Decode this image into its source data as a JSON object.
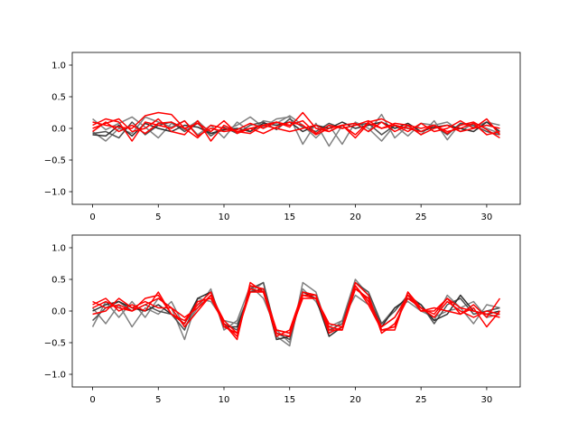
{
  "chart_data": [
    {
      "type": "line",
      "title": "",
      "xlabel": "",
      "ylabel": "",
      "xlim": [
        -1.55,
        32.55
      ],
      "ylim": [
        -1.2,
        1.2
      ],
      "xticks": [
        0,
        5,
        10,
        15,
        20,
        25,
        30
      ],
      "yticks": [
        -1.0,
        -0.5,
        0.0,
        0.5,
        1.0
      ],
      "xtick_labels": [
        "0",
        "5",
        "10",
        "15",
        "20",
        "25",
        "30"
      ],
      "ytick_labels": [
        "−1.0",
        "−0.5",
        "0.0",
        "0.5",
        "1.0"
      ],
      "grid": false,
      "legend": "none",
      "x": [
        0,
        1,
        2,
        3,
        4,
        5,
        6,
        7,
        8,
        9,
        10,
        11,
        12,
        13,
        14,
        15,
        16,
        17,
        18,
        19,
        20,
        21,
        22,
        23,
        24,
        25,
        26,
        27,
        28,
        29,
        30,
        31
      ],
      "series": [
        {
          "color": "#808080",
          "values": [
            0.15,
            -0.02,
            0.08,
            0.18,
            0.02,
            -0.15,
            0.08,
            -0.02,
            0.12,
            -0.08,
            -0.03,
            0.05,
            0.18,
            0.02,
            0.15,
            0.18,
            -0.25,
            0.08,
            -0.28,
            0.05,
            0.08,
            -0.05,
            0.22,
            -0.15,
            0.04,
            -0.1,
            0.12,
            -0.18,
            0.08,
            0.02,
            0.1,
            0.05
          ]
        },
        {
          "color": "#808080",
          "values": [
            -0.05,
            -0.2,
            0.0,
            -0.08,
            0.18,
            0.1,
            0.02,
            0.12,
            -0.1,
            0.05,
            -0.15,
            0.1,
            -0.05,
            0.12,
            0.08,
            0.2,
            0.05,
            -0.15,
            0.05,
            -0.25,
            0.1,
            0.0,
            -0.2,
            0.05,
            -0.12,
            0.08,
            0.05,
            0.1,
            -0.05,
            0.08,
            0.0,
            -0.08
          ]
        },
        {
          "color": "#505050",
          "values": [
            -0.08,
            -0.05,
            -0.15,
            0.1,
            -0.1,
            0.05,
            0.1,
            -0.05,
            0.08,
            -0.12,
            0.02,
            -0.08,
            0.05,
            0.1,
            -0.02,
            0.15,
            0.02,
            -0.05,
            0.08,
            0.0,
            0.05,
            0.08,
            -0.1,
            0.05,
            0.0,
            -0.05,
            0.05,
            -0.1,
            0.08,
            0.05,
            -0.05,
            -0.1
          ]
        },
        {
          "color": "#303030",
          "values": [
            -0.1,
            -0.12,
            0.05,
            -0.12,
            0.08,
            0.0,
            -0.05,
            0.05,
            0.02,
            -0.08,
            -0.02,
            0.0,
            -0.05,
            0.08,
            0.05,
            0.1,
            -0.05,
            0.05,
            0.0,
            0.1,
            0.0,
            0.05,
            0.1,
            0.0,
            0.08,
            -0.05,
            0.02,
            0.05,
            0.0,
            -0.05,
            0.1,
            -0.05
          ]
        },
        {
          "color": "#ff0000",
          "values": [
            0.05,
            0.15,
            0.1,
            -0.2,
            0.1,
            0.05,
            0.0,
            0.12,
            -0.12,
            0.0,
            -0.05,
            -0.02,
            0.08,
            0.0,
            0.1,
            0.05,
            0.12,
            -0.08,
            0.05,
            0.0,
            0.05,
            0.12,
            0.0,
            0.05,
            -0.05,
            0.08,
            -0.05,
            0.0,
            0.12,
            0.0,
            0.15,
            -0.1
          ]
        },
        {
          "color": "#ff0000",
          "values": [
            0.1,
            0.05,
            0.02,
            0.0,
            0.2,
            0.25,
            0.22,
            0.0,
            0.08,
            -0.05,
            0.12,
            -0.08,
            0.0,
            0.05,
            0.1,
            0.02,
            0.25,
            0.0,
            -0.05,
            0.05,
            -0.1,
            0.1,
            0.15,
            0.05,
            0.0,
            -0.05,
            0.05,
            -0.08,
            0.05,
            0.1,
            -0.02,
            -0.15
          ]
        },
        {
          "color": "#ff0000",
          "values": [
            0.0,
            0.08,
            0.15,
            -0.05,
            0.0,
            0.15,
            -0.05,
            -0.1,
            0.12,
            -0.2,
            0.05,
            -0.05,
            0.0,
            -0.08,
            0.02,
            0.1,
            0.05,
            -0.1,
            0.0,
            0.05,
            -0.15,
            0.08,
            0.0,
            0.08,
            0.05,
            -0.1,
            0.0,
            0.05,
            -0.05,
            0.0,
            0.05,
            0.0
          ]
        },
        {
          "color": "#ff0000",
          "values": [
            -0.05,
            0.1,
            -0.05,
            0.05,
            -0.08,
            0.08,
            0.1,
            0.0,
            -0.15,
            0.05,
            0.0,
            -0.05,
            -0.08,
            0.05,
            0.0,
            -0.05,
            0.0,
            0.05,
            -0.05,
            0.05,
            0.08,
            -0.05,
            0.1,
            -0.05,
            0.05,
            0.0,
            0.05,
            -0.05,
            0.0,
            0.08,
            -0.1,
            -0.05
          ]
        }
      ]
    },
    {
      "type": "line",
      "title": "",
      "xlabel": "",
      "ylabel": "",
      "xlim": [
        -1.55,
        32.55
      ],
      "ylim": [
        -1.2,
        1.2
      ],
      "xticks": [
        0,
        5,
        10,
        15,
        20,
        25,
        30
      ],
      "yticks": [
        -1.0,
        -0.5,
        0.0,
        0.5,
        1.0
      ],
      "xtick_labels": [
        "0",
        "5",
        "10",
        "15",
        "20",
        "25",
        "30"
      ],
      "ytick_labels": [
        "−1.0",
        "−0.5",
        "0.0",
        "0.5",
        "1.0"
      ],
      "grid": false,
      "legend": "none",
      "x": [
        0,
        1,
        2,
        3,
        4,
        5,
        6,
        7,
        8,
        9,
        10,
        11,
        12,
        13,
        14,
        15,
        16,
        17,
        18,
        19,
        20,
        21,
        22,
        23,
        24,
        25,
        26,
        27,
        28,
        29,
        30,
        31
      ],
      "series": [
        {
          "color": "#808080",
          "values": [
            -0.25,
            0.15,
            -0.1,
            0.15,
            -0.1,
            0.2,
            0.05,
            -0.45,
            0.2,
            0.15,
            -0.15,
            -0.2,
            0.3,
            0.45,
            -0.4,
            -0.55,
            0.45,
            0.3,
            -0.35,
            -0.15,
            0.25,
            0.1,
            -0.25,
            -0.1,
            0.2,
            0.05,
            -0.15,
            0.25,
            0.05,
            -0.2,
            0.1,
            0.05
          ]
        },
        {
          "color": "#808080",
          "values": [
            0.05,
            -0.2,
            0.1,
            -0.25,
            0.05,
            -0.05,
            0.15,
            -0.25,
            0.05,
            0.35,
            -0.3,
            -0.15,
            0.4,
            0.2,
            -0.3,
            -0.5,
            0.35,
            0.15,
            -0.25,
            -0.15,
            0.5,
            0.25,
            -0.2,
            0.05,
            0.15,
            0.0,
            -0.1,
            0.0,
            0.05,
            0.15,
            -0.1,
            -0.05
          ]
        },
        {
          "color": "#505050",
          "values": [
            -0.15,
            0.05,
            0.15,
            0.0,
            0.1,
            0.0,
            -0.05,
            -0.3,
            0.2,
            0.3,
            -0.2,
            -0.3,
            0.35,
            0.45,
            -0.35,
            -0.45,
            0.3,
            0.25,
            -0.3,
            -0.2,
            0.45,
            0.3,
            -0.2,
            0.0,
            0.25,
            0.1,
            -0.2,
            0.1,
            0.2,
            -0.05,
            0.0,
            0.05
          ]
        },
        {
          "color": "#303030",
          "values": [
            0.0,
            0.1,
            0.15,
            0.05,
            0.0,
            0.1,
            -0.05,
            -0.2,
            0.2,
            0.3,
            -0.25,
            -0.25,
            0.3,
            0.35,
            -0.45,
            -0.4,
            0.3,
            0.2,
            -0.4,
            -0.25,
            0.35,
            0.2,
            -0.25,
            0.05,
            0.2,
            0.1,
            -0.15,
            -0.05,
            0.25,
            0.0,
            -0.05,
            0.0
          ]
        },
        {
          "color": "#ff0000",
          "values": [
            0.1,
            0.2,
            0.0,
            0.1,
            0.0,
            0.3,
            -0.05,
            -0.2,
            0.15,
            0.2,
            -0.2,
            -0.4,
            0.4,
            0.35,
            -0.3,
            -0.35,
            0.25,
            0.25,
            -0.3,
            -0.3,
            0.4,
            0.1,
            -0.3,
            -0.3,
            0.3,
            0.0,
            0.05,
            0.0,
            -0.05,
            0.1,
            -0.1,
            0.2
          ]
        },
        {
          "color": "#ff0000",
          "values": [
            0.15,
            0.05,
            0.1,
            0.0,
            0.1,
            0.2,
            0.05,
            -0.25,
            0.0,
            0.25,
            -0.2,
            -0.45,
            0.45,
            0.3,
            -0.4,
            -0.3,
            0.3,
            0.25,
            -0.35,
            -0.25,
            0.45,
            0.25,
            -0.35,
            -0.2,
            0.2,
            0.05,
            -0.1,
            0.15,
            0.0,
            -0.1,
            0.0,
            -0.05
          ]
        },
        {
          "color": "#ff0000",
          "values": [
            0.05,
            0.15,
            0.05,
            0.0,
            0.2,
            0.25,
            -0.05,
            -0.15,
            0.1,
            0.3,
            -0.25,
            -0.35,
            0.3,
            0.3,
            -0.35,
            -0.4,
            0.25,
            0.2,
            -0.25,
            -0.3,
            0.35,
            0.2,
            -0.3,
            -0.25,
            0.3,
            0.05,
            -0.05,
            0.2,
            -0.05,
            0.05,
            -0.25,
            0.0
          ]
        },
        {
          "color": "#ff0000",
          "values": [
            -0.05,
            0.0,
            0.2,
            0.05,
            0.15,
            0.05,
            0.05,
            -0.1,
            0.05,
            0.25,
            -0.15,
            -0.35,
            0.35,
            0.3,
            -0.3,
            -0.35,
            0.2,
            0.2,
            -0.2,
            -0.25,
            0.4,
            0.15,
            -0.25,
            -0.1,
            0.25,
            0.0,
            0.0,
            0.2,
            0.05,
            0.0,
            -0.05,
            -0.1
          ]
        }
      ]
    }
  ]
}
